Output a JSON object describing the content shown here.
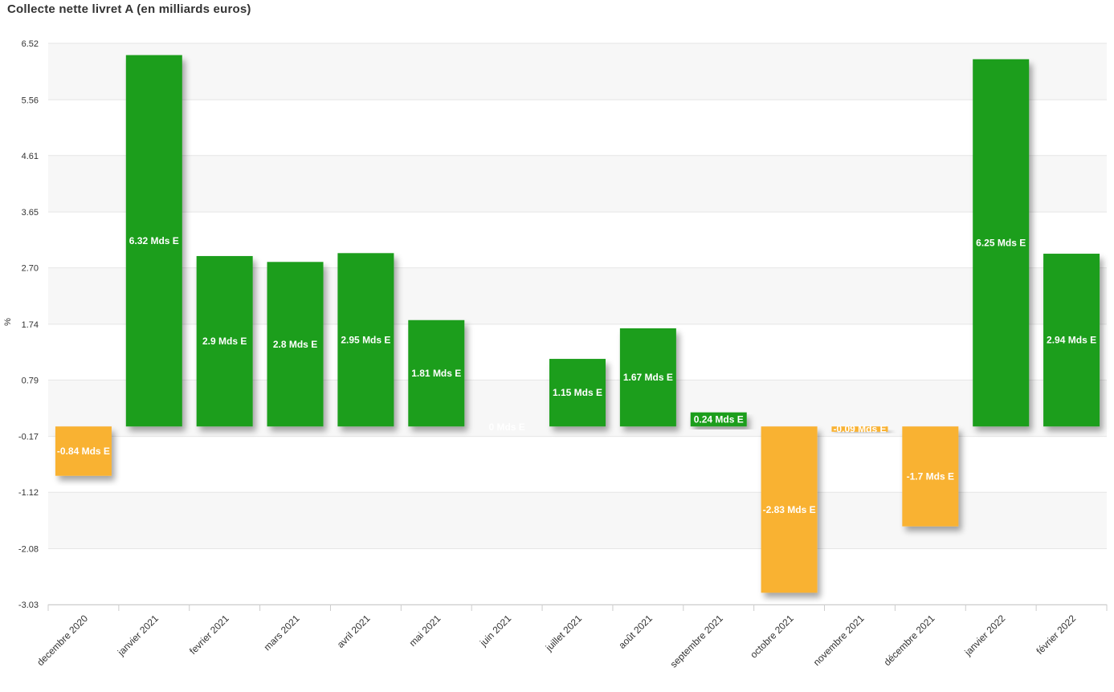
{
  "chart_data": {
    "type": "bar",
    "title": "Collecte nette livret A (en milliards euros)",
    "xlabel": "",
    "ylabel": "%",
    "ylim": [
      -3.03,
      6.52
    ],
    "y_ticks": [
      "6.52",
      "5.56",
      "4.61",
      "3.65",
      "2.70",
      "1.74",
      "0.79",
      "-0.17",
      "-1.12",
      "-2.08",
      "-3.03"
    ],
    "categories": [
      "decembre 2020",
      "janvier 2021",
      "fevrier 2021",
      "mars 2021",
      "avril 2021",
      "mai 2021",
      "juin 2021",
      "juillet 2021",
      "août 2021",
      "septembre 2021",
      "octobre 2021",
      "novembre 2021",
      "décembre 2021",
      "janvier 2022",
      "février 2022"
    ],
    "values": [
      -0.84,
      6.32,
      2.9,
      2.8,
      2.95,
      1.81,
      0,
      1.15,
      1.67,
      0.24,
      -2.83,
      -0.09,
      -1.7,
      6.25,
      2.94
    ],
    "data_labels": [
      "-0.84 Mds E",
      "6.32 Mds E",
      "2.9 Mds E",
      "2.8 Mds E",
      "2.95 Mds E",
      "1.81 Mds E",
      "0 Mds E",
      "1.15 Mds E",
      "1.67 Mds E",
      "0.24 Mds E",
      "-2.83 Mds E",
      "-0.09 Mds E",
      "-1.7 Mds E",
      "6.25 Mds E",
      "2.94 Mds E"
    ],
    "positive_color": "#1e9e1e",
    "negative_color": "#f9b233",
    "band_color": "#f7f7f7",
    "grid_color": "#e6e6e6"
  }
}
